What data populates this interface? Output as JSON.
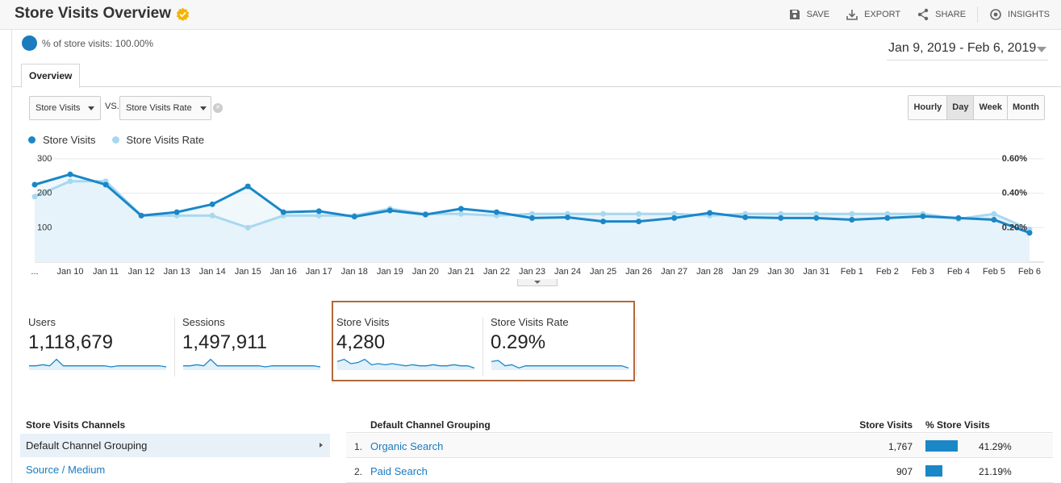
{
  "header": {
    "title": "Store Visits Overview",
    "actions": [
      {
        "label": "SAVE",
        "icon": "save-icon"
      },
      {
        "label": "EXPORT",
        "icon": "export-icon"
      },
      {
        "label": "SHARE",
        "icon": "share-icon"
      },
      {
        "label": "INSIGHTS",
        "icon": "insights-icon"
      }
    ]
  },
  "segment": {
    "text": "% of store visits: 100.00%"
  },
  "date_range": "Jan 9, 2019 - Feb 6, 2019",
  "tabs": [
    {
      "label": "Overview"
    }
  ],
  "controls": {
    "metric1": "Store Visits",
    "vs_label": "VS.",
    "metric2": "Store Visits Rate",
    "periods": [
      "Hourly",
      "Day",
      "Week",
      "Month"
    ],
    "active_period": "Day"
  },
  "colors": {
    "primary": "#1a87c7",
    "secondary": "#a8d8f0",
    "fill": "#e6f3fa",
    "highlight_border": "#b4683a",
    "link": "#1a7bbf"
  },
  "chart_data": {
    "type": "line",
    "categories": [
      "...",
      "Jan 10",
      "Jan 11",
      "Jan 12",
      "Jan 13",
      "Jan 14",
      "Jan 15",
      "Jan 16",
      "Jan 17",
      "Jan 18",
      "Jan 19",
      "Jan 20",
      "Jan 21",
      "Jan 22",
      "Jan 23",
      "Jan 24",
      "Jan 25",
      "Jan 26",
      "Jan 27",
      "Jan 28",
      "Jan 29",
      "Jan 30",
      "Jan 31",
      "Feb 1",
      "Feb 2",
      "Feb 3",
      "Feb 4",
      "Feb 5",
      "Feb 6"
    ],
    "series": [
      {
        "name": "Store Visits",
        "axis": "left",
        "values": [
          225,
          255,
          225,
          135,
          145,
          168,
          220,
          145,
          148,
          132,
          150,
          138,
          155,
          145,
          128,
          130,
          118,
          118,
          128,
          143,
          130,
          128,
          128,
          123,
          128,
          133,
          128,
          123,
          85
        ]
      },
      {
        "name": "Store Visits Rate",
        "axis": "right",
        "values": [
          0.38,
          0.47,
          0.47,
          0.27,
          0.27,
          0.27,
          0.2,
          0.27,
          0.27,
          0.27,
          0.31,
          0.28,
          0.28,
          0.27,
          0.28,
          0.28,
          0.28,
          0.28,
          0.28,
          0.27,
          0.28,
          0.28,
          0.28,
          0.28,
          0.28,
          0.28,
          0.25,
          0.28,
          0.19
        ]
      }
    ],
    "y_left_ticks": [
      "300",
      "200",
      "100"
    ],
    "y_right_ticks": [
      "0.60%",
      "0.40%",
      "0.20%"
    ],
    "ylim_left": [
      0,
      300
    ],
    "ylim_right": [
      0,
      0.6
    ],
    "grid": true,
    "legend": "top-left"
  },
  "metrics": [
    {
      "label": "Users",
      "value": "1,118,679",
      "spark": [
        4,
        4,
        5,
        4,
        10,
        4,
        4,
        4,
        4,
        4,
        4,
        4,
        3,
        4,
        4,
        4,
        4,
        4,
        4,
        4,
        3
      ]
    },
    {
      "label": "Sessions",
      "value": "1,497,911",
      "spark": [
        4,
        4,
        5,
        4,
        10,
        4,
        4,
        4,
        4,
        4,
        4,
        4,
        3,
        4,
        4,
        4,
        4,
        4,
        4,
        4,
        3
      ]
    },
    {
      "label": "Store Visits",
      "value": "4,280",
      "spark": [
        8,
        10,
        6,
        7,
        10,
        5,
        6,
        5,
        6,
        5,
        4,
        5,
        4,
        4,
        5,
        4,
        4,
        5,
        4,
        4,
        2
      ]
    },
    {
      "label": "Store Visits Rate",
      "value": "0.29%",
      "spark": [
        8,
        9,
        4,
        5,
        2,
        4,
        4,
        4,
        4,
        4,
        4,
        4,
        4,
        4,
        4,
        4,
        4,
        4,
        4,
        4,
        2
      ]
    }
  ],
  "channels": {
    "title": "Store Visits Channels",
    "items": [
      {
        "label": "Default Channel Grouping",
        "selected": true
      },
      {
        "label": "Source / Medium",
        "selected": false
      }
    ]
  },
  "table": {
    "headers": {
      "dimension": "Default Channel Grouping",
      "metric": "Store Visits",
      "percent": "% Store Visits"
    },
    "rows": [
      {
        "idx": "1.",
        "name": "Organic Search",
        "value": "1,767",
        "pct": "41.29%",
        "share": 0.4129
      },
      {
        "idx": "2.",
        "name": "Paid Search",
        "value": "907",
        "pct": "21.19%",
        "share": 0.2119
      }
    ]
  }
}
